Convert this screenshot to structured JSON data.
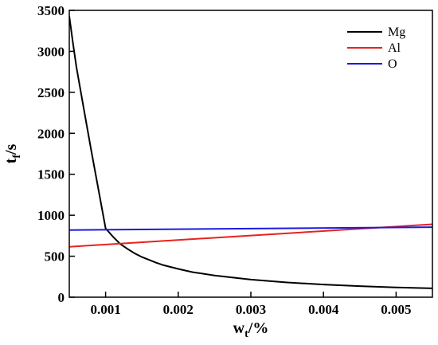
{
  "chart_data": {
    "type": "line",
    "xlabel": {
      "base": "w",
      "sub": "t",
      "suffix": "/%"
    },
    "ylabel": {
      "base": "t",
      "sub": "f",
      "suffix": "/s"
    },
    "xlim": [
      0.0005,
      0.0055
    ],
    "ylim": [
      0,
      3500
    ],
    "xticks": [
      0.001,
      0.002,
      0.003,
      0.004,
      0.005
    ],
    "xtick_labels": [
      "0.001",
      "0.002",
      "0.003",
      "0.004",
      "0.005"
    ],
    "yticks": [
      0,
      500,
      1000,
      1500,
      2000,
      2500,
      3000,
      3500
    ],
    "ytick_labels": [
      "0",
      "500",
      "1000",
      "1500",
      "2000",
      "2500",
      "3000",
      "3500"
    ],
    "grid": false,
    "legend_position": "top-right",
    "series": [
      {
        "name": "Mg",
        "color": "#000000",
        "points": [
          [
            0.0005,
            3430
          ],
          [
            0.00055,
            3100
          ],
          [
            0.0006,
            2800
          ],
          [
            0.0007,
            2300
          ],
          [
            0.0008,
            1800
          ],
          [
            0.0009,
            1320
          ],
          [
            0.001,
            840
          ],
          [
            0.0011,
            740
          ],
          [
            0.0012,
            650
          ],
          [
            0.0013,
            590
          ],
          [
            0.0014,
            535
          ],
          [
            0.0015,
            490
          ],
          [
            0.0016,
            455
          ],
          [
            0.0017,
            420
          ],
          [
            0.0018,
            390
          ],
          [
            0.002,
            345
          ],
          [
            0.0022,
            305
          ],
          [
            0.0025,
            265
          ],
          [
            0.003,
            215
          ],
          [
            0.0035,
            180
          ],
          [
            0.004,
            155
          ],
          [
            0.0045,
            135
          ],
          [
            0.005,
            120
          ],
          [
            0.0055,
            108
          ]
        ]
      },
      {
        "name": "Al",
        "color": "#e8221c",
        "points": [
          [
            0.0005,
            615
          ],
          [
            0.0055,
            890
          ]
        ]
      },
      {
        "name": "O",
        "color": "#1a1ae0",
        "points": [
          [
            0.0005,
            820
          ],
          [
            0.0055,
            855
          ]
        ]
      }
    ]
  }
}
